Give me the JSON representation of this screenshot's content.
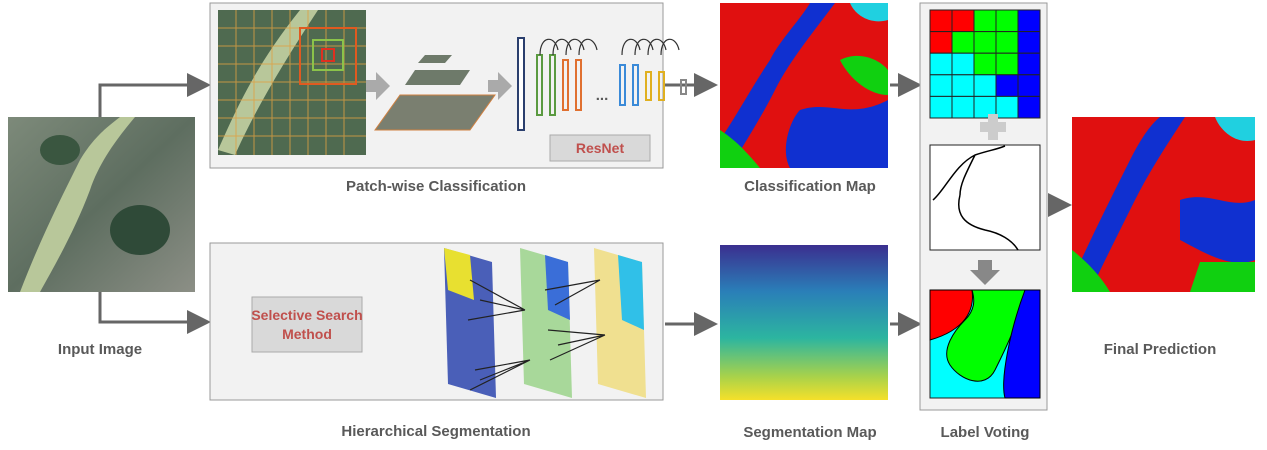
{
  "input": {
    "label": "Input Image"
  },
  "patch_classification": {
    "label": "Patch-wise Classification",
    "network": "ResNet",
    "ellipsis": "..."
  },
  "classification_map": {
    "label": "Classification Map"
  },
  "hierarchical_segmentation": {
    "label": "Hierarchical Segmentation",
    "method": [
      "Selective Search",
      "Method"
    ]
  },
  "segmentation_map": {
    "label": "Segmentation Map"
  },
  "label_voting": {
    "label": "Label Voting"
  },
  "final": {
    "label": "Final Prediction"
  }
}
